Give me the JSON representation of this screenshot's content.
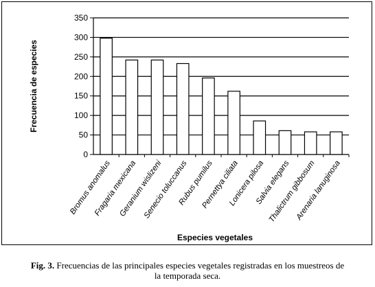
{
  "chart_data": {
    "type": "bar",
    "ylabel": "Frecuencia de especies",
    "xlabel": "Especies vegetales",
    "ylim": [
      0,
      350
    ],
    "yticks": [
      0,
      50,
      100,
      150,
      200,
      250,
      300,
      350
    ],
    "grid": true,
    "categories": [
      "Bromus anomalus",
      "Fragaria mexicana",
      "Geranium wislizeni",
      "Senecio toluccanus",
      "Rubus pumilus",
      "Pernettya ciliata",
      "Lonicera pilosa",
      "Salvia elegans",
      "Thalictrum gibbosum",
      "Arenaria lanuginosa"
    ],
    "values": [
      298,
      242,
      242,
      233,
      196,
      162,
      86,
      61,
      58,
      58
    ],
    "colors": {
      "bar_fill": "#ffffff",
      "bar_stroke": "#000000",
      "grid": "#000000"
    }
  },
  "caption": {
    "label": "Fig. 3.",
    "text": " Frecuencias de las principales especies vegetales registradas en los muestreos de",
    "text_line2": "la temporada seca."
  }
}
